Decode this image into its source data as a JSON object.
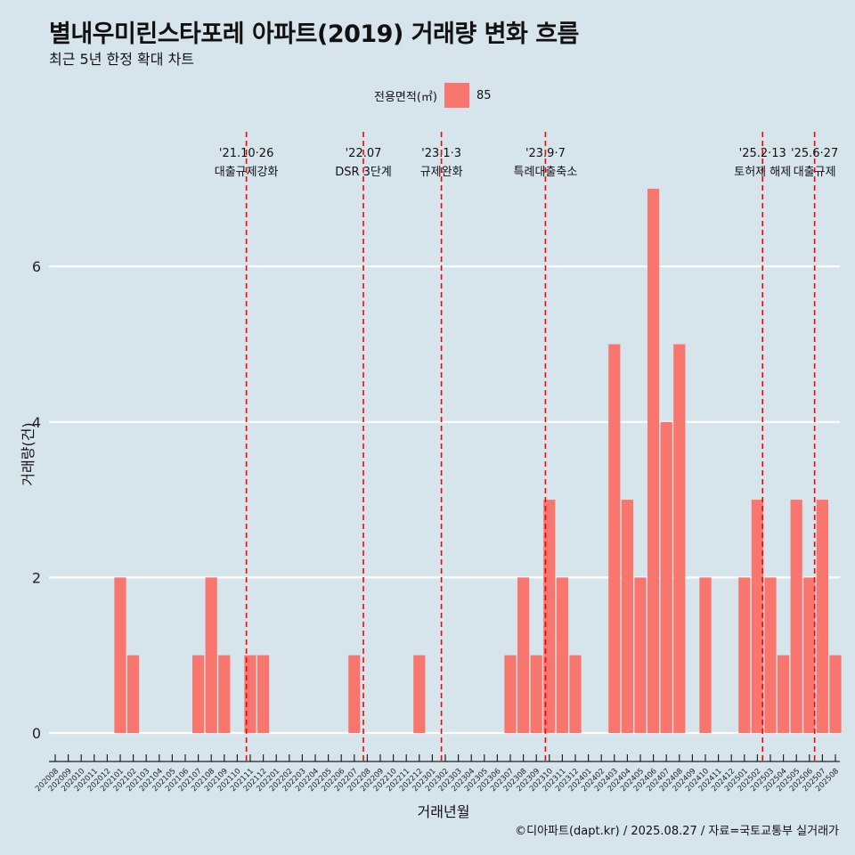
{
  "title": "별내우미린스타포레 아파트(2019) 거래량 변화 흐름",
  "subtitle": "최근 5년 한정 확대 차트",
  "caption": "©디아파트(dapt.kr) / 2025.08.27 / 자료=국토교통부 실거래가",
  "legend": {
    "title": "전용면적(㎡)",
    "label": "85",
    "color": "#f8766d"
  },
  "chart_data": {
    "type": "bar",
    "xlabel": "거래년월",
    "ylabel": "거래량(건)",
    "ylim": [
      0,
      7
    ],
    "yticks": [
      0,
      2,
      4,
      6
    ],
    "grid": true,
    "legend_position": "top",
    "categories": [
      "202008",
      "202009",
      "202010",
      "202011",
      "202012",
      "202101",
      "202102",
      "202103",
      "202104",
      "202105",
      "202106",
      "202107",
      "202108",
      "202109",
      "202110",
      "202111",
      "202112",
      "202201",
      "202202",
      "202203",
      "202204",
      "202205",
      "202206",
      "202207",
      "202208",
      "202209",
      "202210",
      "202211",
      "202212",
      "202301",
      "202302",
      "202303",
      "202304",
      "202305",
      "202306",
      "202307",
      "202308",
      "202309",
      "202310",
      "202311",
      "202312",
      "202401",
      "202402",
      "202403",
      "202404",
      "202405",
      "202406",
      "202407",
      "202408",
      "202409",
      "202410",
      "202411",
      "202412",
      "202501",
      "202502",
      "202503",
      "202504",
      "202505",
      "202506",
      "202507",
      "202508"
    ],
    "series": [
      {
        "name": "85",
        "values": [
          0,
          0,
          0,
          0,
          0,
          2,
          1,
          0,
          0,
          0,
          0,
          1,
          2,
          1,
          0,
          1,
          1,
          0,
          0,
          0,
          0,
          0,
          0,
          1,
          0,
          0,
          0,
          0,
          1,
          0,
          0,
          0,
          0,
          0,
          0,
          1,
          2,
          1,
          3,
          2,
          1,
          0,
          0,
          5,
          3,
          2,
          7,
          4,
          5,
          0,
          2,
          0,
          0,
          2,
          3,
          2,
          1,
          3,
          2,
          3,
          1
        ]
      }
    ],
    "annotations": [
      {
        "date": "'21.10·26",
        "label": "대출규제강화",
        "at": 14.7
      },
      {
        "date": "'22.07",
        "label": "DSR 3단계",
        "at": 23.7
      },
      {
        "date": "'23.1·3",
        "label": "규제완화",
        "at": 29.7
      },
      {
        "date": "'23.9·7",
        "label": "특례대출축소",
        "at": 37.7
      },
      {
        "date": "'25.2·13",
        "label": "토허제 해제",
        "at": 54.4
      },
      {
        "date": "'25.6·27",
        "label": "대출규제",
        "at": 58.4
      }
    ],
    "annotation_color": "#ff0000"
  }
}
